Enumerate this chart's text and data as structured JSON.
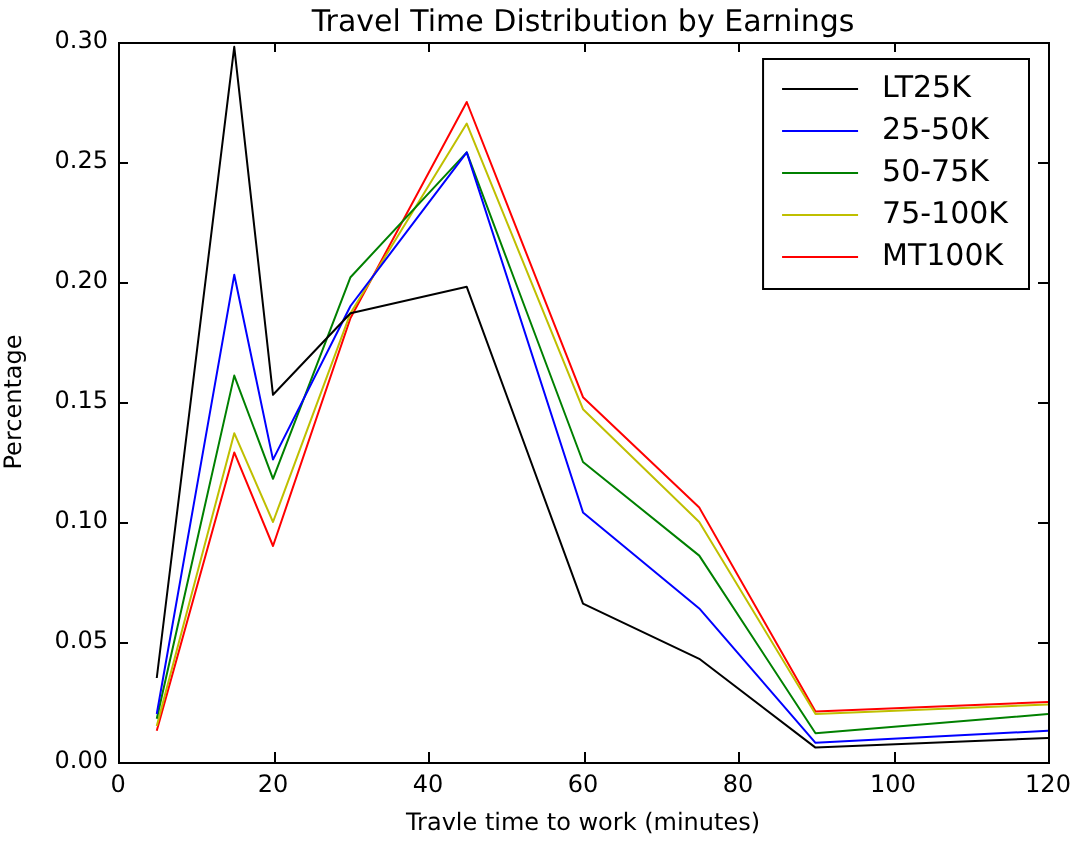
{
  "chart_data": {
    "type": "line",
    "title": "Travel Time Distribution by Earnings",
    "xlabel": "Travle time to work (minutes)",
    "ylabel": "Percentage",
    "x": [
      5,
      15,
      20,
      30,
      45,
      60,
      75,
      90,
      120
    ],
    "series": [
      {
        "name": "LT25K",
        "color": "#000000",
        "values": [
          0.035,
          0.298,
          0.153,
          0.187,
          0.198,
          0.066,
          0.043,
          0.006,
          0.01
        ]
      },
      {
        "name": "25-50K",
        "color": "#0000ff",
        "values": [
          0.02,
          0.203,
          0.126,
          0.19,
          0.254,
          0.104,
          0.064,
          0.008,
          0.013
        ]
      },
      {
        "name": "50-75K",
        "color": "#008000",
        "values": [
          0.018,
          0.161,
          0.118,
          0.202,
          0.254,
          0.125,
          0.086,
          0.012,
          0.02
        ]
      },
      {
        "name": "75-100K",
        "color": "#bfbf00",
        "values": [
          0.015,
          0.137,
          0.1,
          0.187,
          0.266,
          0.147,
          0.1,
          0.02,
          0.024
        ]
      },
      {
        "name": "MT100K",
        "color": "#ff0000",
        "values": [
          0.013,
          0.129,
          0.09,
          0.185,
          0.275,
          0.152,
          0.106,
          0.021,
          0.025
        ]
      }
    ],
    "xlim": [
      0,
      120
    ],
    "xticks": [
      0,
      20,
      40,
      60,
      80,
      100,
      120
    ],
    "ylim": [
      0,
      0.3
    ],
    "yticks": [
      {
        "value": 0,
        "label": "0.00"
      },
      {
        "value": 0.05,
        "label": "0.05"
      },
      {
        "value": 0.1,
        "label": "0.10"
      },
      {
        "value": 0.15,
        "label": "0.15"
      },
      {
        "value": 0.2,
        "label": "0.20"
      },
      {
        "value": 0.25,
        "label": "0.25"
      },
      {
        "value": 0.3,
        "label": "0.30"
      }
    ],
    "legend": "top right",
    "marker": "none",
    "line_style": "solid"
  }
}
